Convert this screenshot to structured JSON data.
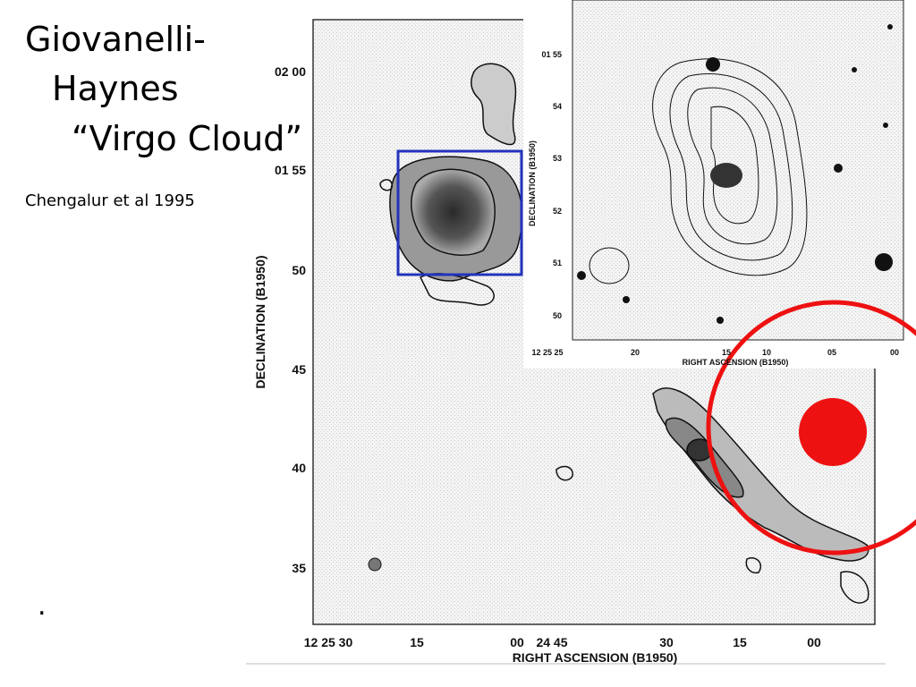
{
  "slide": {
    "title": [
      "Giovanelli-",
      "Haynes",
      "“Virgo Cloud”"
    ],
    "citation": "Chengalur et al 1995",
    "bullet": "."
  },
  "main_map": {
    "y_label": "DECLINATION (B1950)",
    "x_label": "RIGHT ASCENSION (B1950)",
    "y_ticks": [
      "02 00",
      "01 55",
      "50",
      "45",
      "40",
      "35"
    ],
    "x_ticks": [
      "12 25 30",
      "15",
      "00",
      "24 45",
      "30",
      "15",
      "00"
    ]
  },
  "inset_map": {
    "y_label": "DECLINATION (B1950)",
    "x_label": "RIGHT ASCENSION (B1950)",
    "y_ticks": [
      "01 55",
      "54",
      "53",
      "52",
      "51",
      "50"
    ],
    "x_ticks": [
      "12 25 25",
      "20",
      "15",
      "10",
      "05",
      "00"
    ]
  }
}
